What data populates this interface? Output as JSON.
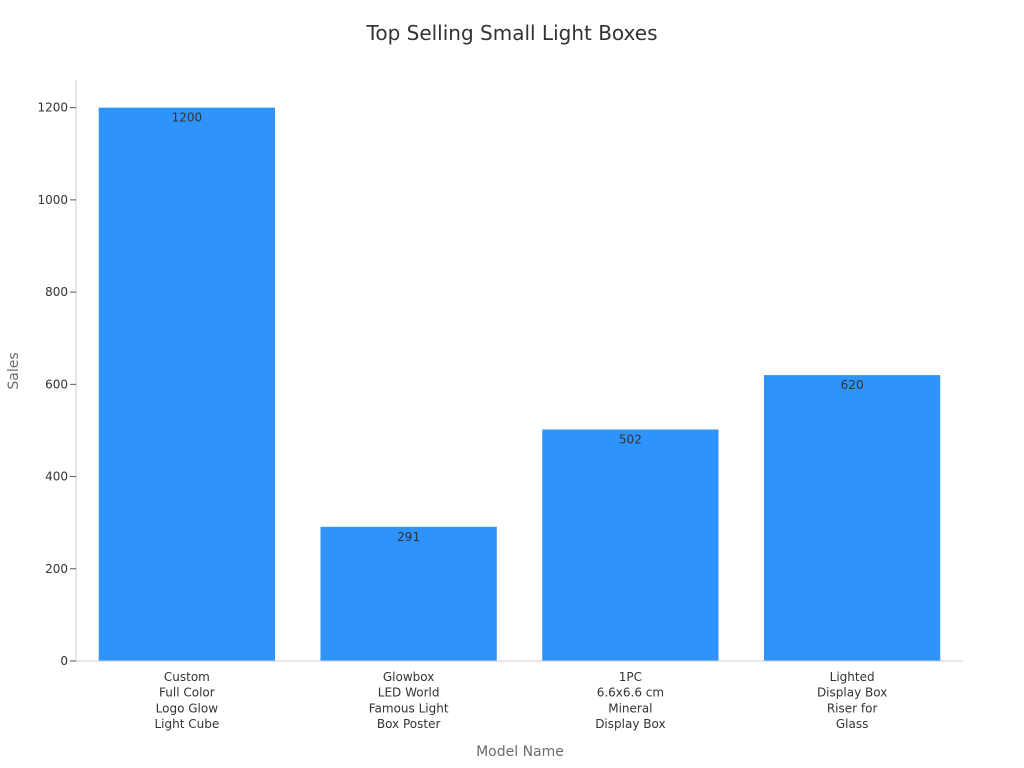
{
  "chart_data": {
    "type": "bar",
    "title": "Top Selling Small Light Boxes",
    "xlabel": "Model Name",
    "ylabel": "Sales",
    "categories": [
      [
        "Custom",
        "Full Color",
        "Logo Glow",
        "Light Cube"
      ],
      [
        "Glowbox",
        "LED World",
        "Famous Light",
        "Box Poster"
      ],
      [
        "1PC",
        "6.6x6.6 cm",
        "Mineral",
        "Display Box"
      ],
      [
        "Lighted",
        "Display Box",
        "Riser for",
        "Glass"
      ]
    ],
    "values": [
      1200,
      291,
      502,
      620
    ],
    "data_labels": [
      "1200",
      "291",
      "502",
      "620"
    ],
    "ylim": [
      0,
      1260
    ],
    "yticks": [
      0,
      200,
      400,
      600,
      800,
      1000,
      1200
    ],
    "grid": false,
    "legend": "none",
    "bar_color": "#2e93fa"
  }
}
